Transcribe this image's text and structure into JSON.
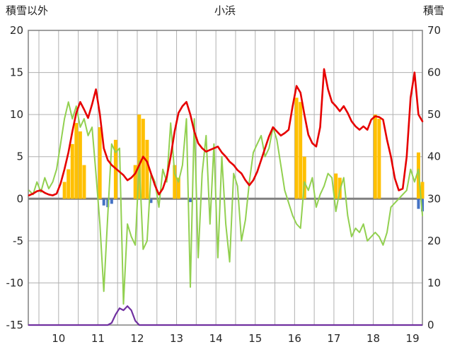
{
  "header": {
    "left": "積雪以外",
    "center": "小浜",
    "right": "積雪"
  },
  "colors": {
    "red": "#e60000",
    "green": "#92d050",
    "orange": "#ffc000",
    "blue": "#4472c4",
    "purple": "#7030a0",
    "grid": "#b0b0b0",
    "zero_line": "#808080",
    "border": "#808080",
    "text": "#262626"
  },
  "chart_data": {
    "type": "line",
    "title": "小浜",
    "grid": "on",
    "x_domain": [
      9.23,
      19.25
    ],
    "x_start": 9.25,
    "x_step": 0.1,
    "x_ticks": [
      10,
      11,
      12,
      13,
      14,
      15,
      16,
      17,
      18,
      19
    ],
    "x_gridline_step": 0.5,
    "left_axis": {
      "label": "積雪以外",
      "lim": [
        -15,
        20
      ],
      "ticks": [
        20,
        15,
        10,
        5,
        0,
        -5,
        -10,
        -15
      ]
    },
    "right_axis": {
      "label": "積雪",
      "lim": [
        0,
        70
      ],
      "ticks": [
        70,
        60,
        50,
        40,
        30,
        20,
        10,
        0
      ]
    },
    "series": [
      {
        "name": "red-line",
        "type": "line",
        "axis": "left",
        "color": "#e60000",
        "values": [
          0.4,
          0.6,
          0.9,
          1.0,
          0.7,
          0.5,
          0.4,
          0.6,
          1.8,
          3.5,
          5.5,
          8.0,
          10.2,
          11.5,
          10.6,
          9.6,
          11.2,
          13.0,
          10.0,
          6.0,
          4.6,
          4.0,
          3.6,
          3.2,
          2.8,
          2.2,
          2.5,
          3.0,
          4.0,
          5.0,
          4.4,
          3.0,
          1.6,
          0.5,
          1.2,
          2.6,
          5.0,
          8.0,
          10.2,
          11.0,
          11.5,
          10.0,
          8.0,
          6.6,
          6.0,
          5.6,
          5.8,
          6.0,
          6.2,
          5.5,
          5.0,
          4.4,
          4.0,
          3.4,
          3.0,
          2.2,
          1.6,
          2.2,
          3.2,
          4.6,
          6.0,
          7.4,
          8.5,
          8.0,
          7.5,
          7.8,
          8.2,
          11.0,
          13.4,
          12.6,
          10.0,
          7.6,
          6.6,
          6.2,
          8.5,
          15.4,
          13.0,
          11.5,
          11.0,
          10.4,
          11.0,
          10.2,
          9.2,
          8.6,
          8.2,
          8.6,
          8.2,
          9.4,
          9.8,
          9.7,
          9.4,
          7.0,
          5.0,
          2.4,
          1.0,
          1.2,
          5.0,
          12.0,
          15.0,
          10.0,
          9.2
        ]
      },
      {
        "name": "green-line",
        "type": "line",
        "axis": "left",
        "color": "#92d050",
        "values": [
          1.0,
          0.5,
          2.0,
          0.8,
          2.5,
          1.2,
          2.0,
          3.5,
          6.5,
          9.5,
          11.5,
          9.5,
          11.0,
          8.5,
          9.5,
          7.5,
          8.5,
          3.0,
          -3.0,
          -11.0,
          -2.0,
          6.5,
          5.5,
          6.0,
          -12.5,
          -3.0,
          -4.5,
          -5.5,
          4.5,
          -6.0,
          -5.0,
          3.0,
          2.0,
          -1.0,
          3.5,
          2.0,
          9.0,
          3.0,
          2.0,
          4.0,
          9.5,
          -10.5,
          9.5,
          -7.0,
          3.0,
          7.5,
          -3.0,
          6.5,
          -7.0,
          5.0,
          -3.0,
          -7.5,
          3.0,
          1.5,
          -5.0,
          -2.5,
          2.0,
          5.5,
          6.5,
          7.5,
          5.0,
          6.0,
          8.5,
          7.0,
          4.0,
          1.0,
          -0.5,
          -2.0,
          -3.0,
          -3.5,
          2.0,
          1.0,
          2.5,
          -1.0,
          0.5,
          1.5,
          3.0,
          2.5,
          -1.5,
          1.0,
          2.5,
          -2.0,
          -4.5,
          -3.5,
          -4.0,
          -3.0,
          -5.0,
          -4.5,
          -4.0,
          -4.5,
          -5.5,
          -4.0,
          -1.0,
          -0.5,
          0.0,
          0.5,
          1.0,
          3.5,
          2.0,
          3.5,
          -2.0
        ]
      },
      {
        "name": "orange-bars",
        "type": "bar",
        "axis": "left",
        "color": "#ffc000",
        "points": [
          {
            "x": 10.15,
            "h": 2.0
          },
          {
            "x": 10.25,
            "h": 3.5
          },
          {
            "x": 10.35,
            "h": 6.5
          },
          {
            "x": 10.45,
            "h": 9.0
          },
          {
            "x": 10.55,
            "h": 8.0
          },
          {
            "x": 10.65,
            "h": 4.0
          },
          {
            "x": 11.05,
            "h": 8.5
          },
          {
            "x": 11.45,
            "h": 7.0
          },
          {
            "x": 11.95,
            "h": 4.0
          },
          {
            "x": 12.05,
            "h": 10.0
          },
          {
            "x": 12.15,
            "h": 9.5
          },
          {
            "x": 12.25,
            "h": 7.0
          },
          {
            "x": 12.95,
            "h": 4.0
          },
          {
            "x": 13.05,
            "h": 2.5
          },
          {
            "x": 16.05,
            "h": 12.0
          },
          {
            "x": 16.15,
            "h": 11.5
          },
          {
            "x": 16.25,
            "h": 5.0
          },
          {
            "x": 17.05,
            "h": 3.0
          },
          {
            "x": 17.15,
            "h": 2.5
          },
          {
            "x": 18.05,
            "h": 10.0
          },
          {
            "x": 18.15,
            "h": 9.5
          },
          {
            "x": 19.15,
            "h": 5.5
          },
          {
            "x": 19.25,
            "h": 2.0
          }
        ]
      },
      {
        "name": "blue-bars",
        "type": "bar",
        "axis": "left",
        "color": "#4472c4",
        "points": [
          {
            "x": 11.15,
            "h": -0.8
          },
          {
            "x": 11.25,
            "h": -1.0
          },
          {
            "x": 11.35,
            "h": -0.6
          },
          {
            "x": 12.35,
            "h": -0.5
          },
          {
            "x": 13.35,
            "h": -0.4
          },
          {
            "x": 19.15,
            "h": -1.2
          },
          {
            "x": 19.25,
            "h": -1.5
          }
        ]
      },
      {
        "name": "snow-depth-purple",
        "type": "line",
        "axis": "right",
        "color": "#7030a0",
        "baseline": 0,
        "points": [
          {
            "x": 11.35,
            "v": 0.5
          },
          {
            "x": 11.45,
            "v": 2.5
          },
          {
            "x": 11.55,
            "v": 4.0
          },
          {
            "x": 11.65,
            "v": 3.5
          },
          {
            "x": 11.75,
            "v": 4.5
          },
          {
            "x": 11.85,
            "v": 3.5
          },
          {
            "x": 11.95,
            "v": 1.0
          }
        ]
      }
    ]
  }
}
